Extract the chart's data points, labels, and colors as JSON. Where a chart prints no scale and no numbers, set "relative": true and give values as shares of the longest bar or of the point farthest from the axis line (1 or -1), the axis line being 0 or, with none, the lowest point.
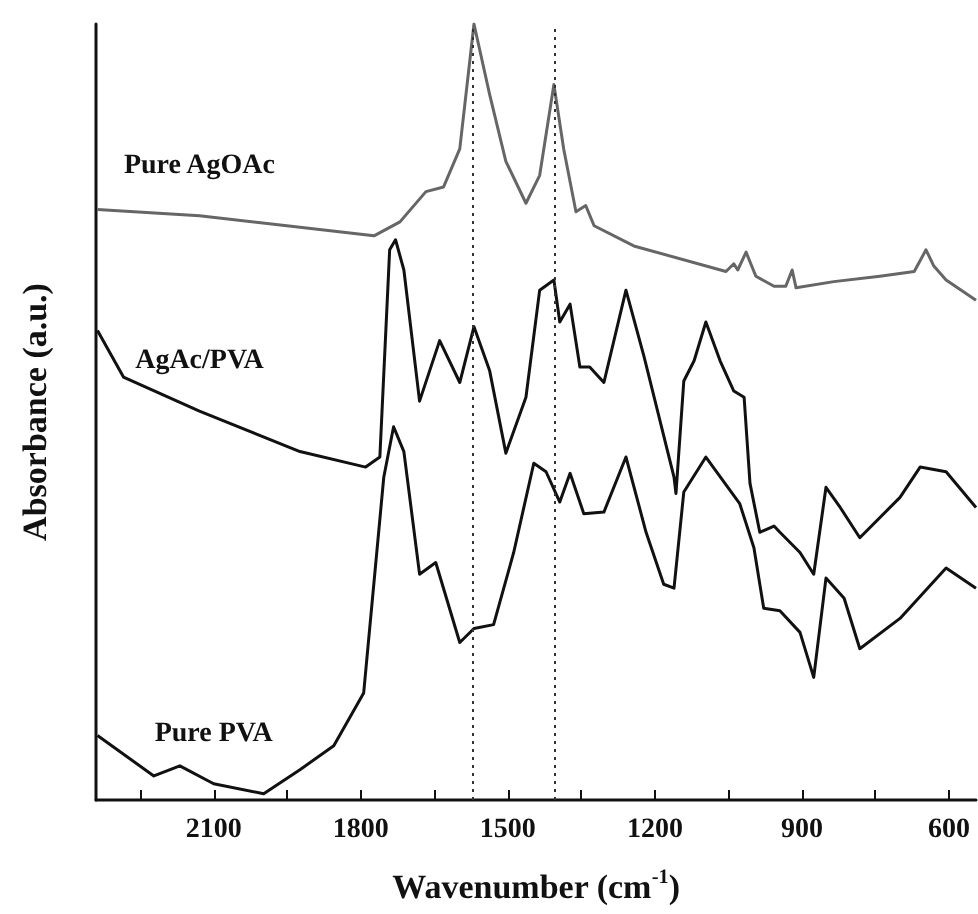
{
  "chart_data": {
    "type": "line",
    "relative": true,
    "xlabel": "Wavenumber (cm$^{-1}$)",
    "ylabel": "Absorbance (a.u.)",
    "xlim": [
      2340,
      545
    ],
    "xticks": [
      {
        "value": 2250,
        "label": null
      },
      2100,
      {
        "value": 1950,
        "label": null
      },
      1800,
      {
        "value": 1650,
        "label": null
      },
      1500,
      {
        "value": 1350,
        "label": null
      },
      1200,
      {
        "value": 1050,
        "label": null
      },
      900,
      {
        "value": 750,
        "label": null
      },
      600
    ],
    "grid": false,
    "legend": false,
    "line_style": "solid",
    "ref_lines": [
      {
        "axis": "x",
        "value": 1570,
        "label": null,
        "line_style": "dotted",
        "color": "#333333"
      },
      {
        "axis": "x",
        "value": 1405,
        "label": null,
        "line_style": "dotted",
        "color": "#333333"
      }
    ],
    "series": [
      {
        "name": "Pure AgOAc",
        "color": "#666666",
        "x": [
          2337,
          2129,
          1924,
          1773,
          1720,
          1667,
          1631,
          1598,
          1569,
          1537,
          1504,
          1463,
          1435,
          1406,
          1386,
          1361,
          1341,
          1324,
          1243,
          1055,
          1039,
          1031,
          1014,
          994,
          957,
          933,
          920,
          912,
          835,
          741,
          671,
          647,
          631,
          606,
          545
        ],
        "values": [
          0.761,
          0.753,
          0.738,
          0.727,
          0.745,
          0.784,
          0.79,
          0.839,
          1.0,
          0.909,
          0.823,
          0.769,
          0.805,
          0.922,
          0.839,
          0.758,
          0.766,
          0.74,
          0.714,
          0.681,
          0.691,
          0.683,
          0.706,
          0.675,
          0.662,
          0.662,
          0.683,
          0.66,
          0.668,
          0.675,
          0.681,
          0.709,
          0.688,
          0.67,
          0.644
        ]
      },
      {
        "name": "AgAc/PVA",
        "color": "#111111",
        "x": [
          2337,
          2284,
          2129,
          1924,
          1790,
          1761,
          1741,
          1729,
          1712,
          1680,
          1639,
          1598,
          1569,
          1537,
          1504,
          1463,
          1435,
          1406,
          1394,
          1373,
          1353,
          1333,
          1304,
          1259,
          1222,
          1161,
          1157,
          1141,
          1120,
          1096,
          1067,
          1039,
          1018,
          1006,
          986,
          957,
          945,
          904,
          876,
          851,
          822,
          782,
          700,
          659,
          606,
          545
        ],
        "values": [
          0.605,
          0.545,
          0.501,
          0.449,
          0.429,
          0.442,
          0.709,
          0.722,
          0.683,
          0.514,
          0.592,
          0.538,
          0.61,
          0.553,
          0.447,
          0.519,
          0.657,
          0.67,
          0.616,
          0.639,
          0.558,
          0.558,
          0.538,
          0.657,
          0.571,
          0.416,
          0.395,
          0.54,
          0.566,
          0.616,
          0.566,
          0.527,
          0.519,
          0.408,
          0.345,
          0.353,
          0.345,
          0.319,
          0.291,
          0.403,
          0.377,
          0.338,
          0.39,
          0.429,
          0.423,
          0.377
        ]
      },
      {
        "name": "Pure PVA",
        "color": "#111111",
        "x": [
          2337,
          2222,
          2169,
          2100,
          1998,
          1924,
          1855,
          1794,
          1753,
          1733,
          1712,
          1680,
          1647,
          1598,
          1569,
          1529,
          1488,
          1447,
          1422,
          1394,
          1373,
          1345,
          1304,
          1259,
          1218,
          1182,
          1161,
          1141,
          1096,
          1027,
          998,
          978,
          945,
          904,
          876,
          851,
          814,
          782,
          700,
          606,
          545
        ],
        "values": [
          0.083,
          0.031,
          0.044,
          0.021,
          0.008,
          0.039,
          0.07,
          0.138,
          0.416,
          0.481,
          0.449,
          0.291,
          0.306,
          0.203,
          0.221,
          0.226,
          0.319,
          0.434,
          0.423,
          0.384,
          0.421,
          0.369,
          0.371,
          0.442,
          0.345,
          0.278,
          0.273,
          0.397,
          0.442,
          0.382,
          0.325,
          0.247,
          0.244,
          0.216,
          0.158,
          0.286,
          0.26,
          0.195,
          0.234,
          0.299,
          0.273
        ]
      }
    ]
  }
}
